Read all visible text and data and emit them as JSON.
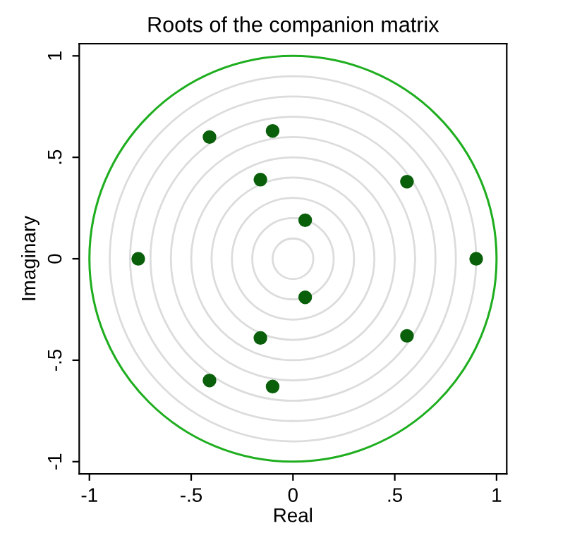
{
  "chart_data": {
    "type": "scatter",
    "title": "Roots of the companion matrix",
    "xlabel": "Real",
    "ylabel": "Imaginary",
    "xlim": [
      -1.05,
      1.05
    ],
    "ylim": [
      -1.06,
      1.06
    ],
    "xticks": [
      {
        "value": -1,
        "label": "-1"
      },
      {
        "value": -0.5,
        "label": "-.5"
      },
      {
        "value": 0,
        "label": "0"
      },
      {
        "value": 0.5,
        "label": ".5"
      },
      {
        "value": 1,
        "label": "1"
      }
    ],
    "yticks": [
      {
        "value": -1,
        "label": "-1"
      },
      {
        "value": -0.5,
        "label": "-.5"
      },
      {
        "value": 0,
        "label": "0"
      },
      {
        "value": 0.5,
        "label": ".5"
      },
      {
        "value": 1,
        "label": "1"
      }
    ],
    "marker": "circle",
    "series": [
      {
        "color": "#0a600a",
        "x": [
          -0.76,
          0.9,
          -0.41,
          -0.1,
          -0.16,
          0.06,
          0.56,
          0.06,
          -0.16,
          0.56,
          -0.41,
          -0.1
        ],
        "values": [
          0,
          0,
          0.6,
          0.63,
          0.39,
          0.19,
          0.38,
          -0.19,
          -0.39,
          -0.38,
          -0.6,
          -0.63
        ]
      }
    ]
  }
}
